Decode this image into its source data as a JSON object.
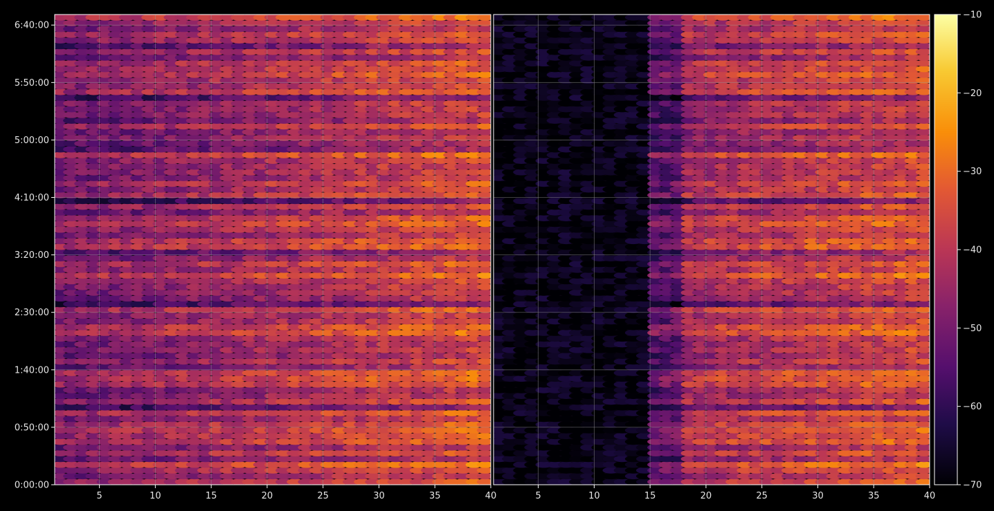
{
  "chart_data": {
    "type": "heatmap",
    "title": "",
    "xlabel": "",
    "ylabel": "",
    "panels": [
      {
        "name": "",
        "xlim": [
          1,
          40
        ],
        "x_ticks": [
          5,
          10,
          15,
          20,
          25,
          30,
          35,
          40
        ],
        "description_values": "left panel: signal strength across channels, brighter toward higher x"
      },
      {
        "name": "",
        "xlim": [
          1,
          40
        ],
        "x_ticks": [
          5,
          10,
          15,
          20,
          25,
          30,
          35,
          40
        ],
        "dark_region_x": [
          1,
          15
        ]
      }
    ],
    "y_ticks": [
      "0:00:00",
      "0:50:00",
      "1:40:00",
      "2:30:00",
      "3:20:00",
      "4:10:00",
      "5:00:00",
      "5:50:00",
      "6:40:00"
    ],
    "y_tick_seconds": [
      0,
      3000,
      6000,
      9000,
      12000,
      15000,
      18000,
      21000,
      24000
    ],
    "ylim_seconds": [
      0,
      24550
    ],
    "grid": true,
    "colormap": "inferno",
    "colorbar": {
      "ticks": [
        -10,
        -20,
        -30,
        -40,
        -50,
        -60,
        -70
      ],
      "range": [
        -70,
        -10
      ]
    }
  },
  "colors": {
    "background": "#000000",
    "axes": "#ffffff",
    "grid": "#9a9a9a"
  }
}
